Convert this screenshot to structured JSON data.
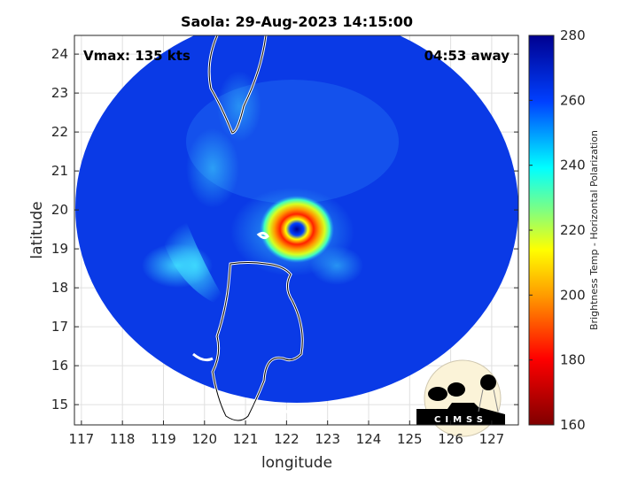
{
  "title": "Saola: 29-Aug-2023 14:15:00",
  "annotations": {
    "vmax": "Vmax: 135 kts",
    "time_away": "04:53 away"
  },
  "axes": {
    "xlabel": "longitude",
    "ylabel": "latitude",
    "xlim": [
      116.83,
      127.65
    ],
    "ylim": [
      14.48,
      24.48
    ],
    "xticks": [
      "117",
      "118",
      "119",
      "120",
      "121",
      "122",
      "123",
      "124",
      "125",
      "126",
      "127"
    ],
    "yticks": [
      "15",
      "16",
      "17",
      "18",
      "19",
      "20",
      "21",
      "22",
      "23",
      "24"
    ],
    "grid": true
  },
  "colorbar": {
    "label": "Brightness Temp - Horizontal Polarization",
    "range": [
      160,
      280
    ],
    "ticks": [
      "160",
      "180",
      "200",
      "220",
      "240",
      "260",
      "280"
    ],
    "colormap": [
      "#800000",
      "#ff0000",
      "#ff9900",
      "#ffff00",
      "#00ffff",
      "#0040ff",
      "#000090"
    ]
  },
  "storm_center": {
    "lon": 122.2,
    "lat": 19.5
  },
  "logo": {
    "text": "CIMSS"
  }
}
